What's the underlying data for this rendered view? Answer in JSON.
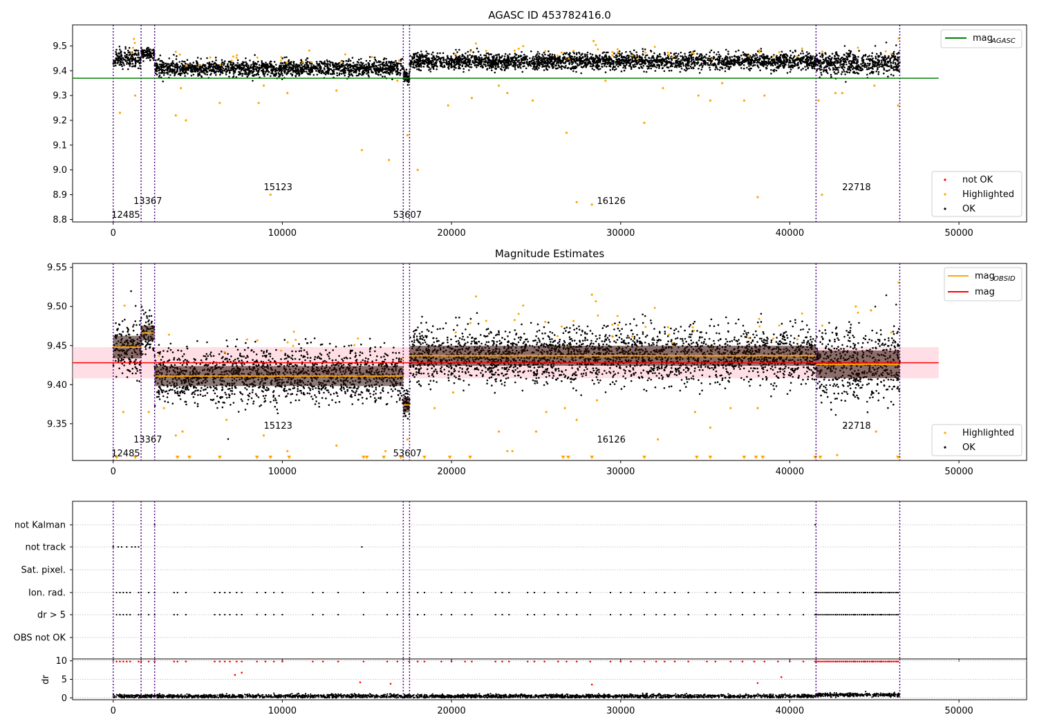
{
  "figure": {
    "title_top": "AGASC ID 453782416.0",
    "title_mid": "Magnitude Estimates",
    "colors": {
      "ok": "#000000",
      "highlighted": "#ffa500",
      "not_ok": "#ff0000",
      "agasc_line": "#008000",
      "mag_line": "#ff0000",
      "obsid_line": "#ffa500",
      "mag_band": "#ffc0cb",
      "obs_boundary": "#4b0082",
      "grid": "#b0b0b0"
    }
  },
  "chart_data": [
    {
      "type": "scatter",
      "title": "AGASC ID 453782416.0",
      "xlim": [
        -2400,
        54000
      ],
      "ylim": [
        8.79,
        9.585
      ],
      "xticks": [
        0,
        10000,
        20000,
        30000,
        40000,
        50000
      ],
      "yticks": [
        8.8,
        8.9,
        9.0,
        9.1,
        9.2,
        9.3,
        9.4,
        9.5
      ],
      "ytick_labels": [
        "8.8",
        "8.9",
        "9.0",
        "9.1",
        "9.2",
        "9.3",
        "9.4",
        "9.5"
      ],
      "mag_agasc": 9.37,
      "mag_agasc_range": [
        -2400,
        48800
      ],
      "legend_top": [
        {
          "label": "mag",
          "sub": "AGASC",
          "kind": "line",
          "color": "agasc_line"
        }
      ],
      "legend_bottom": [
        {
          "label": "not OK",
          "color": "not_ok"
        },
        {
          "label": "Highlighted",
          "color": "highlighted"
        },
        {
          "label": "OK",
          "color": "ok"
        }
      ],
      "obs_boundaries": [
        0,
        1650,
        2450,
        17150,
        17520,
        41550,
        46500
      ],
      "segments": [
        {
          "obsid": "12485",
          "x": [
            0,
            1650
          ],
          "mean": 9.45,
          "spread": 0.018
        },
        {
          "obsid": "13367",
          "x": [
            1650,
            2450
          ],
          "mean": 9.468,
          "spread": 0.012
        },
        {
          "obsid": "15123",
          "x": [
            2450,
            17150
          ],
          "mean": 9.41,
          "spread": 0.016
        },
        {
          "obsid": "53607",
          "x": [
            17150,
            17520
          ],
          "mean": 9.375,
          "spread": 0.012
        },
        {
          "obsid": "16126",
          "x": [
            17520,
            41550
          ],
          "mean": 9.438,
          "spread": 0.016
        },
        {
          "obsid": "22718",
          "x": [
            41550,
            46500
          ],
          "mean": 9.43,
          "spread": 0.022
        }
      ],
      "obsid_labels": [
        {
          "text": "12485",
          "x": -100,
          "y": 8.82
        },
        {
          "text": "13367",
          "x": 1200,
          "y": 8.876
        },
        {
          "text": "15123",
          "x": 8900,
          "y": 8.932
        },
        {
          "text": "53607",
          "x": 16550,
          "y": 8.82
        },
        {
          "text": "16126",
          "x": 28600,
          "y": 8.876
        },
        {
          "text": "22718",
          "x": 43100,
          "y": 8.932
        }
      ],
      "highlighted_points": [
        [
          400,
          9.23
        ],
        [
          1300,
          9.3
        ],
        [
          3700,
          9.22
        ],
        [
          4000,
          9.33
        ],
        [
          4300,
          9.2
        ],
        [
          6300,
          9.27
        ],
        [
          8600,
          9.27
        ],
        [
          8900,
          9.34
        ],
        [
          9300,
          8.9
        ],
        [
          10300,
          9.31
        ],
        [
          13200,
          9.32
        ],
        [
          14700,
          9.08
        ],
        [
          16300,
          9.04
        ],
        [
          16800,
          9.36
        ],
        [
          17400,
          9.14
        ],
        [
          18000,
          9.0
        ],
        [
          19800,
          9.26
        ],
        [
          21200,
          9.29
        ],
        [
          22800,
          9.34
        ],
        [
          23300,
          9.31
        ],
        [
          24800,
          9.28
        ],
        [
          26800,
          9.15
        ],
        [
          27400,
          8.87
        ],
        [
          28300,
          8.86
        ],
        [
          28400,
          9.52
        ],
        [
          29100,
          9.36
        ],
        [
          31400,
          9.19
        ],
        [
          32500,
          9.33
        ],
        [
          34600,
          9.3
        ],
        [
          35300,
          9.28
        ],
        [
          36000,
          9.35
        ],
        [
          37300,
          9.28
        ],
        [
          38100,
          8.89
        ],
        [
          38500,
          9.3
        ],
        [
          41700,
          9.28
        ],
        [
          41900,
          8.9
        ],
        [
          42700,
          9.31
        ],
        [
          43100,
          9.31
        ],
        [
          45000,
          9.34
        ],
        [
          46400,
          9.26
        ]
      ]
    },
    {
      "type": "scatter",
      "title": "Magnitude Estimates",
      "xlim": [
        -2400,
        54000
      ],
      "ylim": [
        9.303,
        9.555
      ],
      "xticks": [
        0,
        10000,
        20000,
        30000,
        40000,
        50000
      ],
      "yticks": [
        9.35,
        9.4,
        9.45,
        9.5,
        9.55
      ],
      "ytick_labels": [
        "9.35",
        "9.40",
        "9.45",
        "9.50",
        "9.55"
      ],
      "mag": 9.428,
      "mag_band": [
        9.408,
        9.448
      ],
      "mag_range": [
        -2400,
        48800
      ],
      "obsid_means": [
        9.448,
        9.466,
        9.411,
        9.374,
        9.437,
        9.426
      ],
      "legend_top": [
        {
          "label": "mag",
          "sub": "OBSID",
          "kind": "line",
          "color": "obsid_line"
        },
        {
          "label": "mag",
          "sub": "",
          "kind": "line",
          "color": "mag_line"
        }
      ],
      "legend_bottom": [
        {
          "label": "Highlighted",
          "color": "highlighted"
        },
        {
          "label": "OK",
          "color": "ok"
        }
      ],
      "highlighted_points": [
        [
          600,
          9.365
        ],
        [
          2100,
          9.365
        ],
        [
          3000,
          9.37
        ],
        [
          3700,
          9.335
        ],
        [
          4100,
          9.34
        ],
        [
          6700,
          9.355
        ],
        [
          8900,
          9.335
        ],
        [
          10300,
          9.315
        ],
        [
          13200,
          9.322
        ],
        [
          16100,
          9.315
        ],
        [
          17400,
          9.33
        ],
        [
          19000,
          9.37
        ],
        [
          20100,
          9.39
        ],
        [
          22800,
          9.34
        ],
        [
          23300,
          9.315
        ],
        [
          23600,
          9.315
        ],
        [
          25000,
          9.34
        ],
        [
          25600,
          9.365
        ],
        [
          26700,
          9.37
        ],
        [
          27400,
          9.355
        ],
        [
          28300,
          9.515
        ],
        [
          28600,
          9.38
        ],
        [
          32200,
          9.33
        ],
        [
          34400,
          9.365
        ],
        [
          35300,
          9.345
        ],
        [
          36500,
          9.37
        ],
        [
          38100,
          9.37
        ],
        [
          42800,
          9.31
        ],
        [
          43900,
          9.5
        ],
        [
          44800,
          9.495
        ],
        [
          45100,
          9.34
        ]
      ],
      "clipped_markers_x": [
        200,
        1300,
        3800,
        4500,
        6300,
        8500,
        9300,
        10400,
        14800,
        15000,
        16000,
        17000,
        18400,
        19900,
        21100,
        26600,
        26900,
        28300,
        31400,
        34500,
        35300,
        37300,
        38000,
        38400,
        41500,
        41800,
        46400
      ]
    },
    {
      "type": "scatter",
      "title": "",
      "xlim": [
        -2400,
        54000
      ],
      "xticks": [
        0,
        10000,
        20000,
        30000,
        40000,
        50000
      ],
      "flag_categories": [
        "not Kalman",
        "not track",
        "Sat. pixel.",
        "Ion. rad.",
        "dr > 5",
        "OBS not OK"
      ],
      "flag_points": {
        "not Kalman": [
          2450,
          41500
        ],
        "not track": [
          0,
          300,
          500,
          800,
          1100,
          1300,
          1500,
          14700
        ],
        "Sat. pixel.": [],
        "Ion. rad.": [
          200,
          400,
          600,
          800,
          1000,
          1500,
          1650,
          2100,
          2450,
          3600,
          3800,
          4300,
          6000,
          6300,
          6600,
          6900,
          7300,
          7600,
          8500,
          9000,
          9500,
          10000,
          11800,
          12400,
          13300,
          14800,
          16200,
          16800,
          17500,
          18000,
          18400,
          19400,
          20000,
          20800,
          21200,
          22600,
          23000,
          23400,
          24500,
          24900,
          25500,
          26300,
          26800,
          27400,
          28200,
          29400,
          30000,
          30600,
          31400,
          32100,
          32600,
          33200,
          34000,
          35100,
          35600,
          36500,
          37200,
          37900,
          38500,
          39300,
          40000,
          40800,
          41500,
          42200,
          42700,
          43300,
          43800,
          44400,
          44900,
          45400,
          45900,
          46300
        ],
        "dr > 5": [
          200,
          400,
          600,
          800,
          1000,
          1500,
          1650,
          2100,
          2450,
          3600,
          3800,
          4300,
          6000,
          6300,
          6600,
          6900,
          7300,
          7600,
          8500,
          9000,
          9500,
          10000,
          11800,
          12400,
          13300,
          14800,
          16200,
          16800,
          17500,
          18000,
          18400,
          19400,
          20000,
          20800,
          21200,
          22600,
          23000,
          23400,
          24500,
          24900,
          25500,
          26300,
          26800,
          27400,
          28200,
          29400,
          30000,
          30600,
          31400,
          32100,
          32600,
          33200,
          34000,
          35100,
          35600,
          36500,
          37200,
          37900,
          38500,
          39300,
          40000,
          40800,
          41500,
          42200,
          42700,
          43300,
          43800,
          44400,
          44900,
          45400,
          45900,
          46300
        ],
        "OBS not OK": []
      }
    },
    {
      "type": "scatter",
      "title": "",
      "ylabel": "dr",
      "xlim": [
        -2400,
        54000
      ],
      "ylim": [
        -0.5,
        10.5
      ],
      "xticks": [
        0,
        10000,
        20000,
        30000,
        40000,
        50000
      ],
      "xtick_labels": [
        "0",
        "10000",
        "20000",
        "30000",
        "40000",
        "50000"
      ],
      "yticks": [
        0,
        5,
        10
      ],
      "ytick_labels": [
        "0",
        "5",
        "10"
      ],
      "outlier_points": [
        [
          7200,
          6.2
        ],
        [
          7600,
          6.8
        ],
        [
          14600,
          4.2
        ],
        [
          16400,
          3.8
        ],
        [
          28300,
          3.6
        ],
        [
          38100,
          4.0
        ],
        [
          39500,
          5.6
        ]
      ]
    }
  ]
}
